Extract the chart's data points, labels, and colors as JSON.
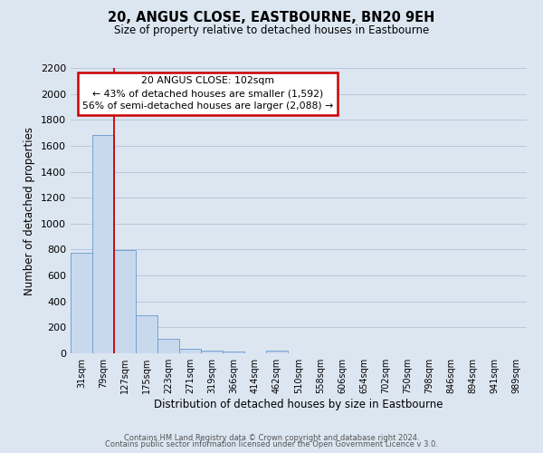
{
  "title": "20, ANGUS CLOSE, EASTBOURNE, BN20 9EH",
  "subtitle": "Size of property relative to detached houses in Eastbourne",
  "xlabel": "Distribution of detached houses by size in Eastbourne",
  "ylabel": "Number of detached properties",
  "categories": [
    "31sqm",
    "79sqm",
    "127sqm",
    "175sqm",
    "223sqm",
    "271sqm",
    "319sqm",
    "366sqm",
    "414sqm",
    "462sqm",
    "510sqm",
    "558sqm",
    "606sqm",
    "654sqm",
    "702sqm",
    "750sqm",
    "798sqm",
    "846sqm",
    "894sqm",
    "941sqm",
    "989sqm"
  ],
  "values": [
    775,
    1680,
    795,
    295,
    110,
    35,
    22,
    15,
    0,
    20,
    0,
    0,
    0,
    0,
    0,
    0,
    0,
    0,
    0,
    0,
    0
  ],
  "bar_color": "#c9d9ed",
  "bar_edge_color": "#6699cc",
  "grid_color": "#b8c8dc",
  "background_color": "#dce6f1",
  "annotation_title": "20 ANGUS CLOSE: 102sqm",
  "annotation_line1": "← 43% of detached houses are smaller (1,592)",
  "annotation_line2": "56% of semi-detached houses are larger (2,088) →",
  "annotation_box_color": "#ffffff",
  "annotation_box_edge": "#cc0000",
  "ylim": [
    0,
    2200
  ],
  "yticks": [
    0,
    200,
    400,
    600,
    800,
    1000,
    1200,
    1400,
    1600,
    1800,
    2000,
    2200
  ],
  "footer1": "Contains HM Land Registry data © Crown copyright and database right 2024.",
  "footer2": "Contains public sector information licensed under the Open Government Licence v 3.0."
}
